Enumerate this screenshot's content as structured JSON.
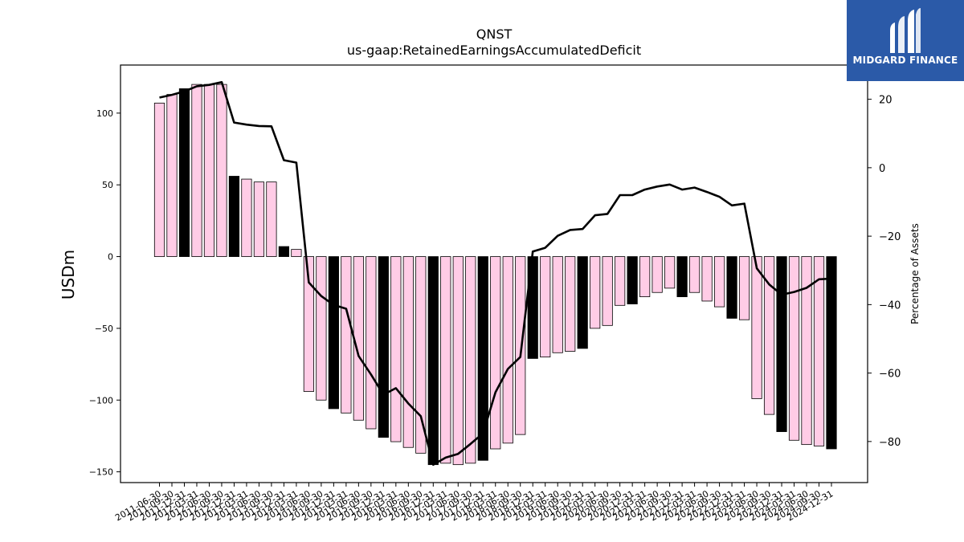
{
  "chart_data": {
    "type": "bar",
    "title": "QNST",
    "subtitle": "us-gaap:RetainedEarningsAccumulatedDeficit",
    "ylabel": "USDm",
    "ylabel_right": "Percentage of Assets",
    "ylim": [
      -157.5,
      133.5
    ],
    "ylim_right": [
      -92,
      30
    ],
    "yticks": [
      -150,
      -100,
      -50,
      0,
      50,
      100
    ],
    "yticks_right": [
      -80,
      -60,
      -40,
      -20,
      0,
      20
    ],
    "categories": [
      "2011-06-30",
      "2011-09-30",
      "2011-12-31",
      "2012-03-31",
      "2012-06-30",
      "2012-09-30",
      "2012-12-31",
      "2013-03-31",
      "2013-06-30",
      "2013-09-30",
      "2013-12-31",
      "2014-03-31",
      "2014-06-30",
      "2014-09-30",
      "2014-12-31",
      "2015-03-31",
      "2015-06-30",
      "2015-09-30",
      "2015-12-31",
      "2016-03-31",
      "2016-06-30",
      "2016-09-30",
      "2016-12-31",
      "2017-03-31",
      "2017-06-30",
      "2017-09-30",
      "2017-12-31",
      "2018-03-31",
      "2018-06-30",
      "2018-09-30",
      "2018-12-31",
      "2019-03-31",
      "2019-06-30",
      "2019-09-30",
      "2019-12-31",
      "2020-03-31",
      "2020-06-30",
      "2020-09-30",
      "2020-12-31",
      "2021-03-31",
      "2021-06-30",
      "2021-09-30",
      "2021-12-31",
      "2022-03-31",
      "2022-06-30",
      "2022-09-30",
      "2022-12-31",
      "2023-03-31",
      "2023-06-30",
      "2023-09-30",
      "2023-12-31",
      "2024-03-31",
      "2024-06-30",
      "2024-09-30",
      "2024-12-31"
    ],
    "series": [
      {
        "name": "",
        "values": [
          107,
          113,
          117,
          120,
          120,
          120,
          56,
          54,
          52,
          52,
          7,
          5,
          -94,
          -100,
          -106,
          -109,
          -114,
          -120,
          -126,
          -129,
          -133,
          -137,
          -145,
          -144,
          -145,
          -144,
          -142,
          -134,
          -130,
          -124,
          -71,
          -70,
          -67,
          -66,
          -64,
          -50,
          -48,
          -34,
          -33,
          -28,
          -25,
          -22,
          -28,
          -25,
          -31,
          -35,
          -43,
          -44,
          -99,
          -110,
          -122,
          -128,
          -131,
          -132,
          -134
        ],
        "highlight": [
          false,
          false,
          true,
          false,
          false,
          false,
          true,
          false,
          false,
          false,
          true,
          false,
          false,
          false,
          true,
          false,
          false,
          false,
          true,
          false,
          false,
          false,
          true,
          false,
          false,
          false,
          true,
          false,
          false,
          false,
          true,
          false,
          false,
          false,
          true,
          false,
          false,
          false,
          true,
          false,
          false,
          false,
          true,
          false,
          false,
          false,
          true,
          false,
          false,
          false,
          true,
          false,
          false,
          false,
          true
        ]
      },
      {
        "name": "",
        "axis": "right",
        "values": [
          20.5,
          21.3,
          22.3,
          23.8,
          24.2,
          25,
          13.2,
          12.6,
          12.2,
          12.1,
          2.2,
          1.5,
          -33.5,
          -37.5,
          -40.1,
          -41.2,
          -55,
          -60.4,
          -66.3,
          -64.4,
          -68.9,
          -72.6,
          -86.8,
          -84.7,
          -83.6,
          -80.7,
          -77.6,
          -65.6,
          -58.8,
          -55.3,
          -24.5,
          -23.4,
          -19.9,
          -18.2,
          -17.9,
          -13.9,
          -13.5,
          -8,
          -8,
          -6.4,
          -5.5,
          -4.9,
          -6.4,
          -5.8,
          -7.1,
          -8.5,
          -11,
          -10.5,
          -29.4,
          -34.1,
          -37.1,
          -36.3,
          -35.1,
          -32.6,
          -32.4
        ]
      }
    ],
    "colors": {
      "bar": "#ffcce6",
      "bar_highlight": "#000000",
      "line": "#000000"
    }
  },
  "logo": {
    "text": "MIDGARD FINANCE",
    "bg": "#2b5aa8"
  }
}
